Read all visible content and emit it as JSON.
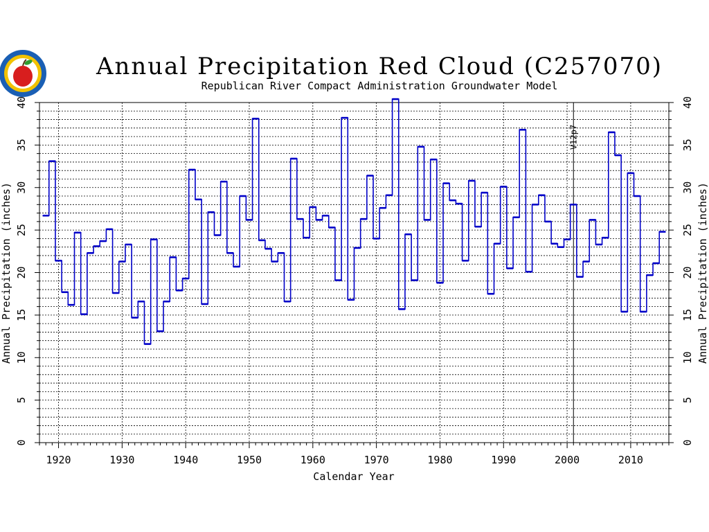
{
  "title": "Annual Precipitation Red Cloud (C257070)",
  "subtitle": "Republican River Compact Administration Groundwater Model",
  "colors": {
    "line": "#0000c8",
    "grid": "#000000",
    "text": "#000000",
    "logo_ring": "#1a5fb4",
    "logo_inner": "#f2c200",
    "apple": "#d81e1e",
    "leaf": "#2f9e2f"
  },
  "logo": {
    "icon": "rrca-apple-seal-icon"
  },
  "chart_data": {
    "type": "line",
    "step": true,
    "title": "Annual Precipitation Red Cloud (C257070)",
    "subtitle": "Republican River Compact Administration Groundwater Model",
    "xlabel": "Calendar Year",
    "ylabel": "Annual Precipitation (inches)",
    "xlim": [
      1917,
      2016
    ],
    "ylim": [
      0,
      40
    ],
    "xticks": [
      1920,
      1930,
      1940,
      1950,
      1960,
      1970,
      1980,
      1990,
      2000,
      2010
    ],
    "yticks": [
      0,
      5,
      10,
      15,
      20,
      25,
      30,
      35,
      40
    ],
    "grid": true,
    "annotation": {
      "text": "V12p7",
      "x": 2001
    },
    "series": [
      {
        "x": [
          1918,
          1919,
          1920,
          1921,
          1922,
          1923,
          1924,
          1925,
          1926,
          1927,
          1928,
          1929,
          1930,
          1931,
          1932,
          1933,
          1934,
          1935,
          1936,
          1937,
          1938,
          1939,
          1940,
          1941,
          1942,
          1943,
          1944,
          1945,
          1946,
          1947,
          1948,
          1949,
          1950,
          1951,
          1952,
          1953,
          1954,
          1955,
          1956,
          1957,
          1958,
          1959,
          1960,
          1961,
          1962,
          1963,
          1964,
          1965,
          1966,
          1967,
          1968,
          1969,
          1970,
          1971,
          1972,
          1973,
          1974,
          1975,
          1976,
          1977,
          1978,
          1979,
          1980,
          1981,
          1982,
          1983,
          1984,
          1985,
          1986,
          1987,
          1988,
          1989,
          1990,
          1991,
          1992,
          1993,
          1994,
          1995,
          1996,
          1997,
          1998,
          1999,
          2000,
          2001,
          2002,
          2003,
          2004,
          2005,
          2006,
          2007,
          2008,
          2009,
          2010,
          2011,
          2012,
          2013,
          2014,
          2015
        ],
        "values": [
          26.7,
          33.1,
          21.4,
          17.7,
          16.2,
          24.7,
          15.1,
          22.3,
          23.1,
          23.7,
          25.1,
          17.6,
          21.3,
          23.3,
          14.7,
          16.6,
          11.6,
          23.9,
          13.1,
          16.6,
          21.8,
          17.9,
          19.3,
          32.1,
          28.6,
          16.3,
          27.1,
          24.4,
          30.7,
          22.3,
          20.7,
          29.0,
          26.2,
          38.1,
          23.8,
          22.8,
          21.3,
          22.3,
          16.6,
          33.4,
          26.3,
          24.1,
          27.7,
          26.2,
          26.7,
          25.3,
          19.1,
          38.2,
          16.8,
          22.9,
          26.3,
          31.4,
          24.0,
          27.6,
          29.1,
          40.4,
          15.7,
          24.5,
          19.1,
          34.8,
          26.2,
          33.3,
          18.8,
          30.5,
          28.5,
          28.1,
          21.4,
          30.8,
          25.4,
          29.4,
          17.5,
          23.4,
          30.1,
          20.5,
          26.5,
          36.8,
          20.1,
          28.0,
          29.1,
          26.0,
          23.4,
          23.0,
          23.9,
          28.0,
          19.5,
          21.3,
          26.2,
          23.3,
          24.1,
          36.5,
          33.8,
          15.4,
          31.7,
          29.0,
          15.4,
          19.7,
          21.1,
          24.8
        ]
      }
    ]
  }
}
